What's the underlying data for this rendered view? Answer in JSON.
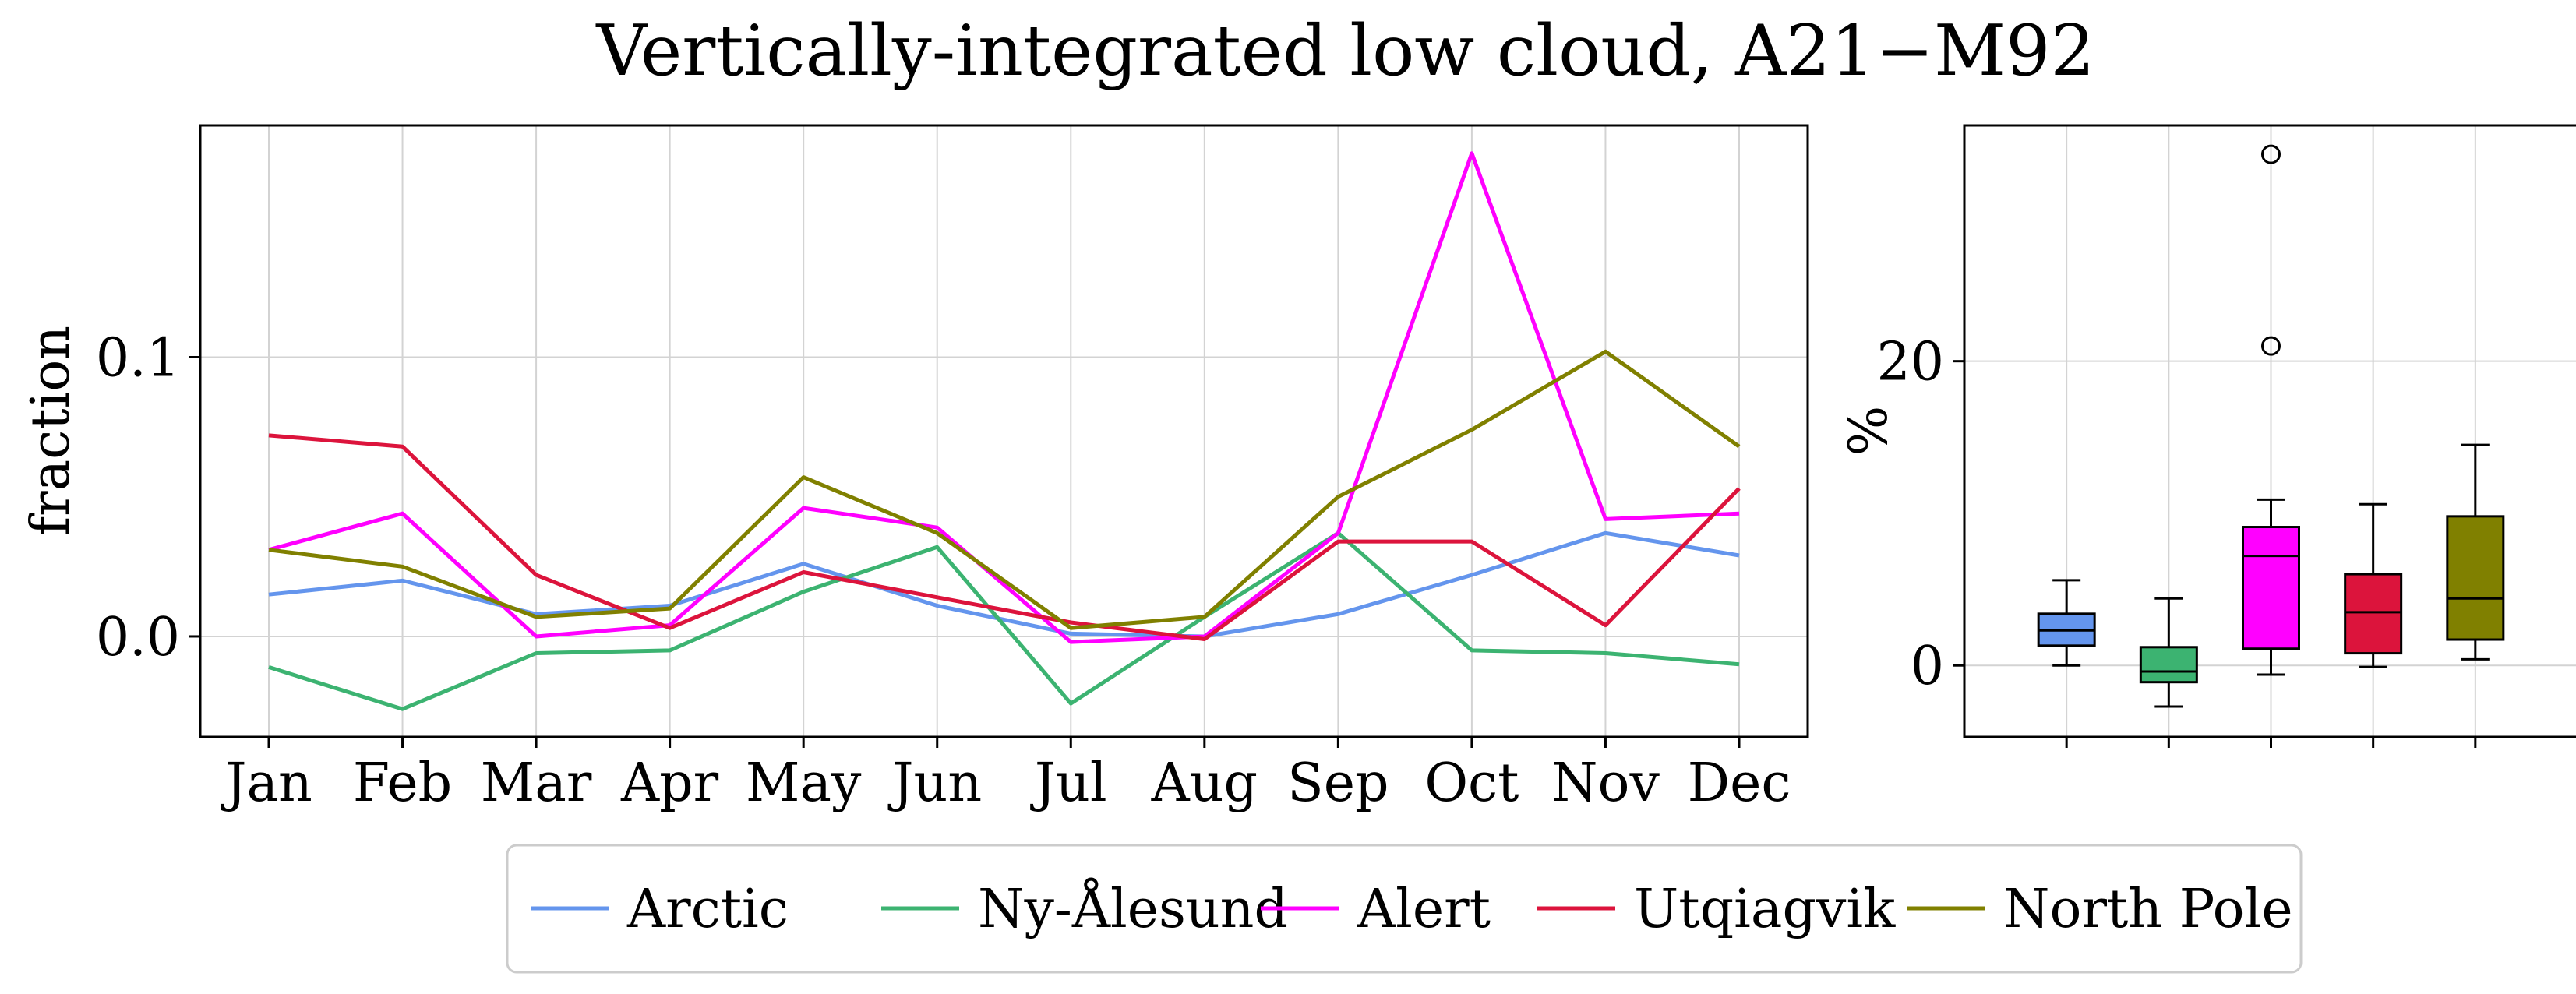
{
  "chart_data": [
    {
      "type": "line",
      "title": "Vertically-integrated low cloud, A21−M92",
      "ylabel": "fraction",
      "xlabel": "",
      "categories": [
        "Jan",
        "Feb",
        "Mar",
        "Apr",
        "May",
        "Jun",
        "Jul",
        "Aug",
        "Sep",
        "Oct",
        "Nov",
        "Dec"
      ],
      "ylim": [
        -0.036,
        0.183
      ],
      "yticks": [
        0.0,
        0.1
      ],
      "ytick_labels": [
        "0.0",
        "0.1"
      ],
      "grid": true,
      "series": [
        {
          "name": "Arctic",
          "color": "#6495ed",
          "values": [
            0.015,
            0.02,
            0.008,
            0.011,
            0.026,
            0.011,
            0.001,
            0.0,
            0.008,
            0.022,
            0.037,
            0.029
          ]
        },
        {
          "name": "Ny-Ålesund",
          "color": "#3cb371",
          "values": [
            -0.011,
            -0.026,
            -0.006,
            -0.005,
            0.016,
            0.032,
            -0.024,
            0.007,
            0.037,
            -0.005,
            -0.006,
            -0.01
          ]
        },
        {
          "name": "Alert",
          "color": "#ff00ff",
          "values": [
            0.031,
            0.044,
            0.0,
            0.004,
            0.046,
            0.039,
            -0.002,
            0.0,
            0.037,
            0.173,
            0.042,
            0.044
          ]
        },
        {
          "name": "Utqiagvik",
          "color": "#dc143c",
          "values": [
            0.072,
            0.068,
            0.022,
            0.003,
            0.023,
            0.014,
            0.005,
            -0.001,
            0.034,
            0.034,
            0.004,
            0.053
          ]
        },
        {
          "name": "North Pole",
          "color": "#808000",
          "values": [
            0.031,
            0.025,
            0.007,
            0.01,
            0.057,
            0.037,
            0.003,
            0.007,
            0.05,
            0.074,
            0.102,
            0.068
          ]
        }
      ]
    },
    {
      "type": "box",
      "ylabel": "%",
      "ylim": [
        -4.7,
        35.5
      ],
      "yticks": [
        0,
        20
      ],
      "ytick_labels": [
        "0",
        "20"
      ],
      "grid": true,
      "boxes": [
        {
          "series": "Arctic",
          "color": "#6495ed",
          "whislo": 0.0,
          "q1": 1.3,
          "med": 2.3,
          "q3": 3.4,
          "whishi": 5.6,
          "fliers": []
        },
        {
          "series": "Ny-Ålesund",
          "color": "#3cb371",
          "whislo": -2.7,
          "q1": -1.1,
          "med": -0.4,
          "q3": 1.2,
          "whishi": 4.4,
          "fliers": []
        },
        {
          "series": "Alert",
          "color": "#ff00ff",
          "whislo": -0.6,
          "q1": 1.1,
          "med": 7.2,
          "q3": 9.1,
          "whishi": 10.9,
          "fliers": [
            21.0,
            33.6
          ]
        },
        {
          "series": "Utqiagvik",
          "color": "#dc143c",
          "whislo": -0.1,
          "q1": 0.8,
          "med": 3.5,
          "q3": 6.0,
          "whishi": 10.6,
          "fliers": []
        },
        {
          "series": "North Pole",
          "color": "#808000",
          "whislo": 0.4,
          "q1": 1.7,
          "med": 4.4,
          "q3": 9.8,
          "whishi": 14.5,
          "fliers": []
        }
      ]
    }
  ],
  "legend": {
    "placement": "bottom-center",
    "entries": [
      {
        "label": "Arctic",
        "color": "#6495ed"
      },
      {
        "label": "Ny-Ålesund",
        "color": "#3cb371"
      },
      {
        "label": "Alert",
        "color": "#ff00ff"
      },
      {
        "label": "Utqiagvik",
        "color": "#dc143c"
      },
      {
        "label": "North Pole",
        "color": "#808000"
      }
    ]
  }
}
